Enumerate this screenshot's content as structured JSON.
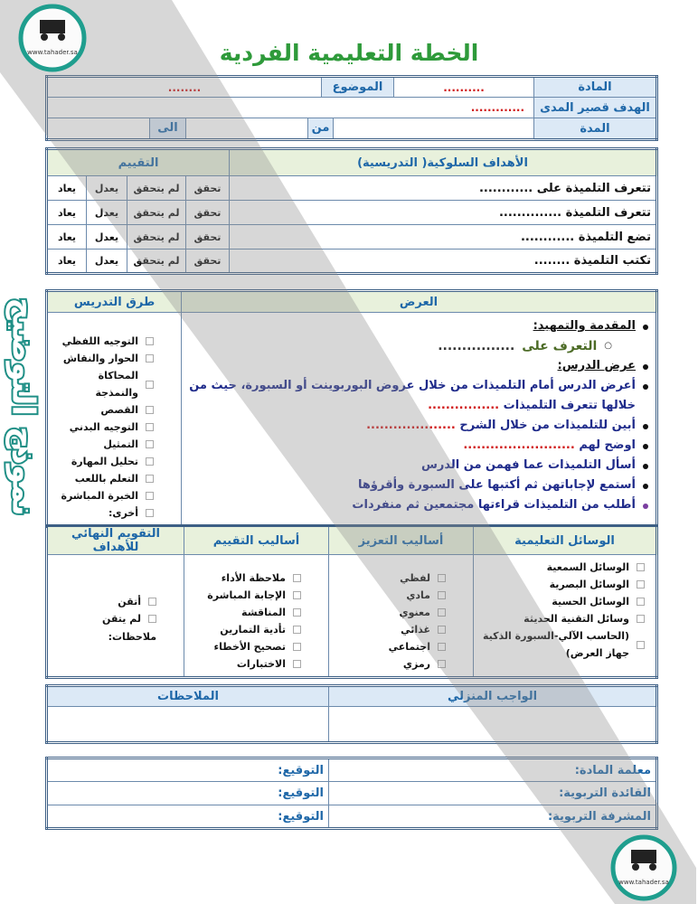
{
  "title": "الخطة التعليمية الفردية",
  "info": {
    "subject_label": "المادة",
    "subject_value": "..........",
    "topic_label": "الموضوع",
    "topic_value": "........",
    "goal_label": "الهدف قصير المدى",
    "goal_value": ".............",
    "duration_label": "المدة",
    "from_label": "من",
    "to_label": "الى"
  },
  "objectives": {
    "header": "الأهداف السلوكية( التدريسية)",
    "eval_header": "التقييم",
    "rows": [
      {
        "text": "تتعرف التلميذة على ............",
        "c1": "تحقق",
        "c2": "لم يتحقق",
        "c3": "يعدل",
        "c4": "يعاد"
      },
      {
        "text": "تتعرف التلميذة ..............",
        "c1": "تحقق",
        "c2": "لم يتحقق",
        "c3": "يعدل",
        "c4": "يعاد"
      },
      {
        "text": "تضع التلميذة ............",
        "c1": "تحقق",
        "c2": "لم يتحقق",
        "c3": "يعدل",
        "c4": "يعاد"
      },
      {
        "text": "تكتب التلميذة ........",
        "c1": "تحقق",
        "c2": "لم يتحقق",
        "c3": "يعدل",
        "c4": "يعاد"
      }
    ]
  },
  "presentation": {
    "header": "العرض",
    "methods_header": "طرق التدريس",
    "intro": "المقدمة والتمهيد:",
    "intro_sub": "التعرف على",
    "intro_dots": "................",
    "lesson": "عرض الدرس:",
    "steps": [
      {
        "text": "أعرض الدرس أمام التلميذات من خلال عروض البوربوينت أو السبورة، حيث من خلالها تتعرف التلميذات",
        "dots": "................"
      },
      {
        "text": "أبين للتلميذات من خلال الشرح",
        "dots": "...................."
      },
      {
        "text": "اوضح لهم",
        "dots": "........................."
      },
      {
        "text": "أسأل التلميذات عما فهمن من الدرس",
        "dots": ""
      },
      {
        "text": "أستمع لإجاباتهن ثم أكتبها على السبورة وأقرؤها",
        "dots": ""
      },
      {
        "text": "أطلب من التلميذات قراءتها مجتمعين ثم منفردات",
        "dots": ""
      }
    ],
    "methods": [
      "التوجيه اللفظي",
      "الحوار والنقاش",
      "المحاكاة والنمذجة",
      "القصص",
      "التوجيه البدني",
      "التمثيل",
      "تحليل المهارة",
      "التعلم باللعب",
      "الخبرة المباشرة",
      "أخرى:"
    ]
  },
  "resources": {
    "h1": "الوسائل التعليمية",
    "h2": "أساليب التعزيز",
    "h3": "أساليب التقييم",
    "h4": "التقويم النهائي للأهداف",
    "aids": [
      "الوسائل السمعية",
      "الوسائل البصرية",
      "الوسائل الحسية",
      "وسائل التقنية الحديثة",
      "(الحاسب الآلي-السبورة الذكية جهاز العرض)"
    ],
    "reinforce": [
      "لفظي",
      "مادي",
      "معنوي",
      "غذائي",
      "اجتماعي",
      "رمزي"
    ],
    "assess": [
      "ملاحظة الأداء",
      "الإجابة المباشرة",
      "المناقشة",
      "تأدية التمارين",
      "تصحيح الأخطاء",
      "الاختبارات"
    ],
    "final": [
      "أتقن",
      "لم يتقن"
    ],
    "notes_label": "ملاحظات:"
  },
  "homework": {
    "h1": "الواجب المنزلي",
    "h2": "الملاحظات"
  },
  "signatures": {
    "rows": [
      {
        "role": "معلمة المادة:",
        "sig": "التوقيع:"
      },
      {
        "role": "القائدة التربوية:",
        "sig": "التوقيع:"
      },
      {
        "role": "المشرفة التربوية:",
        "sig": "التوقيع:"
      }
    ]
  },
  "watermark": {
    "text": "نموذج التوضيح",
    "logo_site": "www.tahader.sa"
  },
  "colors": {
    "title": "#2e9a3a",
    "header_text": "#1e67a8",
    "border": "#3d5f85",
    "watermark": "#1f8f86"
  }
}
